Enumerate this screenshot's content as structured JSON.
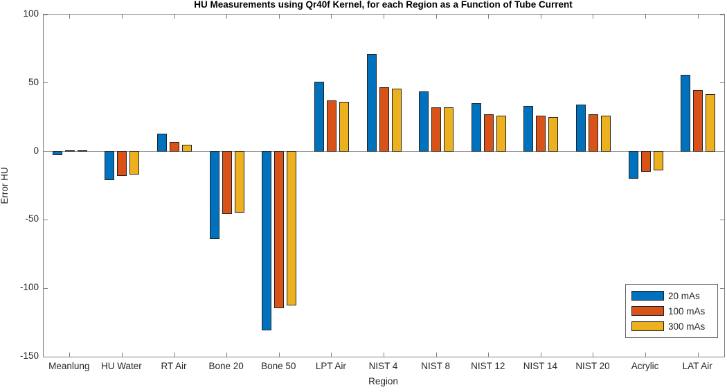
{
  "chart_data": {
    "type": "bar",
    "title": "HU Measurements using Qr40f Kernel, for each Region as a Function of Tube Current",
    "xlabel": "Region",
    "ylabel": "Error HU",
    "ylim": [
      -150,
      100
    ],
    "yticks": [
      100,
      50,
      0,
      -50,
      -100,
      -150
    ],
    "grid": false,
    "legend_position": "bottom-right",
    "categories": [
      "Meanlung",
      "HU Water",
      "RT Air",
      "Bone 20",
      "Bone 50",
      "LPT Air",
      "NIST 4",
      "NIST 8",
      "NIST 12",
      "NIST 14",
      "NIST 20",
      "Acrylic",
      "LAT Air"
    ],
    "series": [
      {
        "name": "20 mAs",
        "color": "#0072BD",
        "values": [
          -3,
          -21,
          13,
          -64,
          -131,
          51,
          71,
          44,
          35,
          33,
          34,
          -20,
          56
        ]
      },
      {
        "name": "100 mAs",
        "color": "#D95319",
        "values": [
          0,
          -18,
          7,
          -46,
          -115,
          37,
          47,
          32,
          27,
          26,
          27,
          -15,
          45
        ]
      },
      {
        "name": "300 mAs",
        "color": "#EDB120",
        "values": [
          1,
          -17,
          5,
          -45,
          -113,
          36,
          46,
          32,
          26,
          25,
          26,
          -14,
          42
        ]
      }
    ]
  }
}
